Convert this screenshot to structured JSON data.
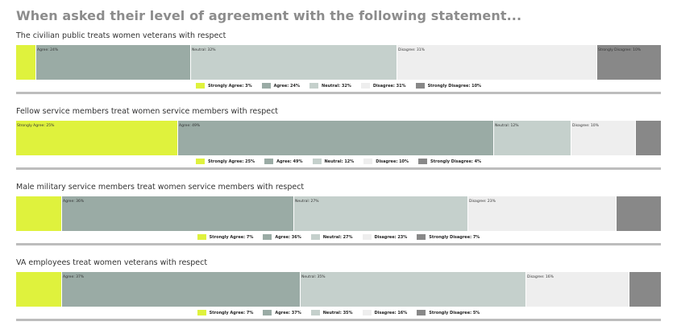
{
  "title": "When asked their level of agreement with the following statement...",
  "colors": {
    "strongly_agree": "#dff23d",
    "agree": "#9aaba5",
    "neutral": "#c5d0cc",
    "disagree": "#eeeeee",
    "strongly_disagree": "#888888"
  },
  "chart_data": [
    {
      "type": "bar",
      "title": "The civilian public treats women veterans with respect",
      "categories": [
        "Strongly Agree",
        "Agree",
        "Neutral",
        "Disagree",
        "Strongly Disagree"
      ],
      "values": [
        3,
        24,
        32,
        31,
        10
      ],
      "bar_labels": [
        "",
        "Agree: 24%",
        "Neutral: 32%",
        "Disagree: 31%",
        "Strongly Disagree: 10%"
      ],
      "legend": [
        "Strongly Agree: 3%",
        "Agree: 24%",
        "Neutral: 32%",
        "Disagree: 31%",
        "Strongly Disagree: 10%"
      ]
    },
    {
      "type": "bar",
      "title": "Fellow service members treat women service members with respect",
      "categories": [
        "Strongly Agree",
        "Agree",
        "Neutral",
        "Disagree",
        "Strongly Disagree"
      ],
      "values": [
        25,
        49,
        12,
        10,
        4
      ],
      "bar_labels": [
        "Strongly Agree: 25%",
        "Agree: 49%",
        "Neutral: 12%",
        "Disagree: 10%",
        ""
      ],
      "legend": [
        "Strongly Agree: 25%",
        "Agree: 49%",
        "Neutral: 12%",
        "Disagree: 10%",
        "Strongly Disagree: 4%"
      ]
    },
    {
      "type": "bar",
      "title": "Male military service members treat women service members with respect",
      "categories": [
        "Strongly Agree",
        "Agree",
        "Neutral",
        "Disagree",
        "Strongly Disagree"
      ],
      "values": [
        7,
        36,
        27,
        23,
        7
      ],
      "bar_labels": [
        "",
        "Agree: 36%",
        "Neutral: 27%",
        "Disagree: 23%",
        ""
      ],
      "legend": [
        "Strongly Agree: 7%",
        "Agree: 36%",
        "Neutral: 27%",
        "Disagree: 23%",
        "Strongly Disagree: 7%"
      ]
    },
    {
      "type": "bar",
      "title": "VA employees treat women veterans with respect",
      "categories": [
        "Strongly Agree",
        "Agree",
        "Neutral",
        "Disagree",
        "Strongly Disagree"
      ],
      "values": [
        7,
        37,
        35,
        16,
        5
      ],
      "bar_labels": [
        "",
        "Agree: 37%",
        "Neutral: 35%",
        "Disagree: 16%",
        ""
      ],
      "legend": [
        "Strongly Agree: 7%",
        "Agree: 37%",
        "Neutral: 35%",
        "Disagree: 16%",
        "Strongly Disagree: 5%"
      ]
    }
  ]
}
